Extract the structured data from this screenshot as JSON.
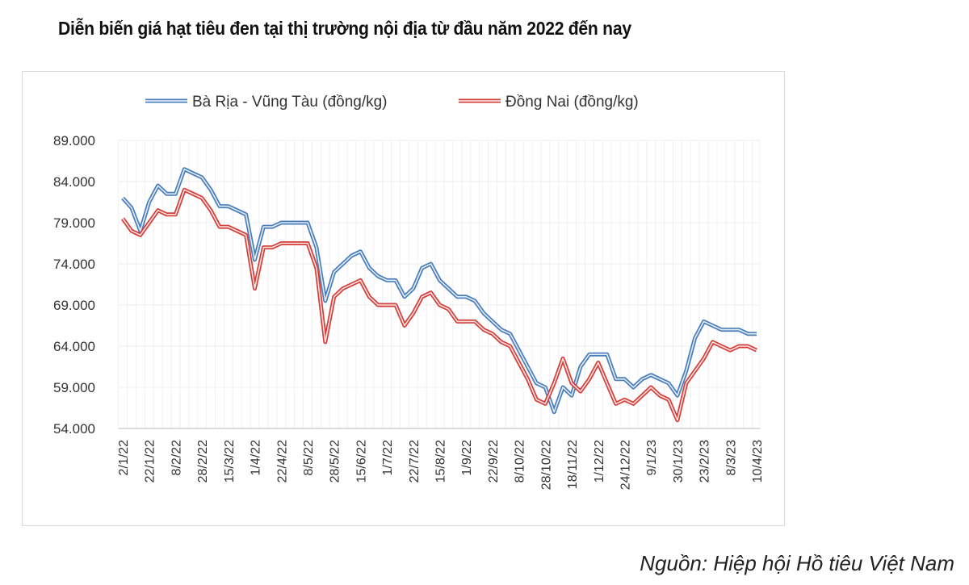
{
  "chart_data": {
    "type": "line",
    "title": "Diễn biến giá hạt tiêu đen tại thị trường nội địa từ đầu năm 2022 đến nay",
    "source": "Nguồn: Hiệp hội Hồ tiêu Việt Nam",
    "xlabel": "",
    "ylabel": "",
    "ylim": [
      54000,
      89000
    ],
    "yticks": [
      "89.000",
      "84.000",
      "79.000",
      "74.000",
      "69.000",
      "64.000",
      "59.000",
      "54.000"
    ],
    "ytick_values": [
      89000,
      84000,
      79000,
      74000,
      69000,
      64000,
      59000,
      54000
    ],
    "x_tick_labels": [
      "2/1/22",
      "22/1/22",
      "8/2/22",
      "28/2/22",
      "15/3/22",
      "1/4/22",
      "22/4/22",
      "8/5/22",
      "28/5/22",
      "15/6/22",
      "1/7/22",
      "22/7/22",
      "15/8/22",
      "1/9/22",
      "22/9/22",
      "8/10/22",
      "28/10/22",
      "18/11/22",
      "1/12/22",
      "24/12/22",
      "9/1/23",
      "30/1/23",
      "23/2/23",
      "8/3/23",
      "10/4/23"
    ],
    "grid": true,
    "legend": "top",
    "series": [
      {
        "name": "Bà Rịa - Vũng Tàu (đồng/kg)",
        "color": "#4a7ebb",
        "values": [
          82000,
          80800,
          78000,
          81500,
          83500,
          82500,
          82500,
          85500,
          85000,
          84500,
          83000,
          81000,
          81000,
          80500,
          80000,
          74500,
          78500,
          78500,
          79000,
          79000,
          79000,
          79000,
          76000,
          69500,
          73000,
          74000,
          75000,
          75500,
          73500,
          72500,
          72000,
          72000,
          70000,
          71000,
          73500,
          74000,
          72000,
          71000,
          70000,
          70000,
          69500,
          68000,
          67000,
          66000,
          65500,
          63500,
          61500,
          59500,
          59000,
          56000,
          59000,
          58000,
          61500,
          63000,
          63000,
          63000,
          60000,
          60000,
          59000,
          60000,
          60500,
          60000,
          59500,
          58000,
          61000,
          65000,
          67000,
          66500,
          66000,
          66000,
          66000,
          65500,
          65500
        ]
      },
      {
        "name": "Đồng Nai (đồng/kg)",
        "color": "#d43f3a",
        "values": [
          79500,
          78000,
          77500,
          79000,
          80500,
          80000,
          80000,
          83000,
          82500,
          82000,
          80500,
          78500,
          78500,
          78000,
          77500,
          71000,
          76000,
          76000,
          76500,
          76500,
          76500,
          76500,
          73500,
          64500,
          70000,
          71000,
          71500,
          72000,
          70000,
          69000,
          69000,
          69000,
          66500,
          68000,
          70000,
          70500,
          69000,
          68500,
          67000,
          67000,
          67000,
          66000,
          65500,
          64500,
          64000,
          62000,
          60000,
          57500,
          57000,
          59500,
          62500,
          59500,
          58500,
          60000,
          62000,
          59500,
          57000,
          57500,
          57000,
          58000,
          59000,
          58000,
          57500,
          55000,
          59500,
          61000,
          62500,
          64500,
          64000,
          63500,
          64000,
          64000,
          63500
        ]
      }
    ]
  }
}
